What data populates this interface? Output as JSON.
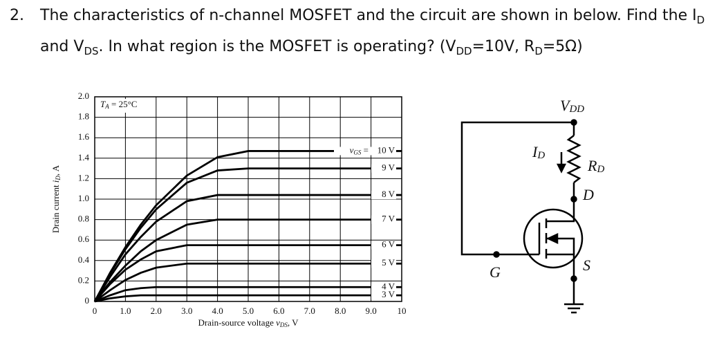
{
  "question": {
    "number": "2.",
    "line1": [
      "The characteristics of n-channel MOSFET and the circuit are shown in below. Find the I",
      "D"
    ],
    "line2": [
      "and V",
      "DS",
      ". In what region is the MOSFET is operating? (V",
      "DD",
      "=10V, R",
      "D",
      "=5Ω)"
    ]
  },
  "chart_data": {
    "type": "line",
    "temp_label": {
      "var": "T",
      "sub": "A",
      "rest": " = 25°C"
    },
    "series_prefix": {
      "var": "v",
      "sub": "GS",
      "rest": " ="
    },
    "xlabel": {
      "text": "Drain-source voltage ",
      "var": "v",
      "sub": "DS",
      "rest": ", V"
    },
    "ylabel": {
      "text": "Drain current ",
      "var": "i",
      "sub": "D",
      "rest": ", A"
    },
    "x": [
      0,
      0.5,
      1,
      1.5,
      2,
      3,
      4,
      5,
      6,
      7,
      8,
      10
    ],
    "series": [
      {
        "name": "10 V",
        "color": "#000000",
        "values": [
          0,
          0.28,
          0.53,
          0.75,
          0.94,
          1.23,
          1.41,
          1.47,
          1.47,
          1.47,
          1.47,
          1.47
        ]
      },
      {
        "name": "9 V",
        "color": "#000000",
        "values": [
          0,
          0.27,
          0.51,
          0.72,
          0.9,
          1.16,
          1.28,
          1.3,
          1.3,
          1.3,
          1.3,
          1.3
        ]
      },
      {
        "name": "8 V",
        "color": "#000000",
        "values": [
          0,
          0.24,
          0.46,
          0.63,
          0.78,
          0.98,
          1.04,
          1.04,
          1.04,
          1.04,
          1.04,
          1.04
        ]
      },
      {
        "name": "7 V",
        "color": "#000000",
        "values": [
          0,
          0.19,
          0.35,
          0.49,
          0.6,
          0.75,
          0.8,
          0.8,
          0.8,
          0.8,
          0.8,
          0.8
        ]
      },
      {
        "name": "6 V",
        "color": "#000000",
        "values": [
          0,
          0.17,
          0.31,
          0.41,
          0.49,
          0.55,
          0.55,
          0.55,
          0.55,
          0.55,
          0.55,
          0.55
        ]
      },
      {
        "name": "5 V",
        "color": "#000000",
        "values": [
          0,
          0.11,
          0.21,
          0.28,
          0.33,
          0.37,
          0.37,
          0.37,
          0.37,
          0.37,
          0.37,
          0.37
        ]
      },
      {
        "name": "4 V",
        "color": "#000000",
        "values": [
          0,
          0.06,
          0.11,
          0.13,
          0.14,
          0.14,
          0.14,
          0.14,
          0.14,
          0.14,
          0.14,
          0.14
        ]
      },
      {
        "name": "3 V",
        "color": "#000000",
        "values": [
          0,
          0.03,
          0.05,
          0.06,
          0.06,
          0.06,
          0.06,
          0.06,
          0.06,
          0.06,
          0.06,
          0.06
        ]
      }
    ],
    "xlim": [
      0,
      10
    ],
    "xticks": [
      0,
      {
        "value": 1,
        "label": "1.0"
      },
      {
        "value": 2,
        "label": "2.0"
      },
      {
        "value": 3,
        "label": "3.0"
      },
      {
        "value": 4,
        "label": "4.0"
      },
      {
        "value": 5,
        "label": "5.0"
      },
      {
        "value": 6,
        "label": "6.0"
      },
      {
        "value": 7,
        "label": "7.0"
      },
      {
        "value": 8,
        "label": "8.0"
      },
      {
        "value": 9,
        "label": "9.0"
      },
      10
    ],
    "ylim": [
      0,
      2
    ],
    "yticks": [
      0,
      {
        "value": 0.2,
        "label": "0.2"
      },
      {
        "value": 0.4,
        "label": "0.4"
      },
      {
        "value": 0.6,
        "label": "0.6"
      },
      {
        "value": 0.8,
        "label": "0.8"
      },
      {
        "value": 1,
        "label": "1.0"
      },
      {
        "value": 1.2,
        "label": "1.2"
      },
      {
        "value": 1.4,
        "label": "1.4"
      },
      {
        "value": 1.6,
        "label": "1.6"
      },
      {
        "value": 1.8,
        "label": "1.8"
      },
      {
        "value": 2,
        "label": "2.0"
      }
    ],
    "grid": true
  },
  "circuit": {
    "vdd": [
      "V",
      "DD"
    ],
    "id": [
      "I",
      "D"
    ],
    "rd": [
      "R",
      "D"
    ],
    "drain": "D",
    "gate": "G",
    "source": "S"
  }
}
